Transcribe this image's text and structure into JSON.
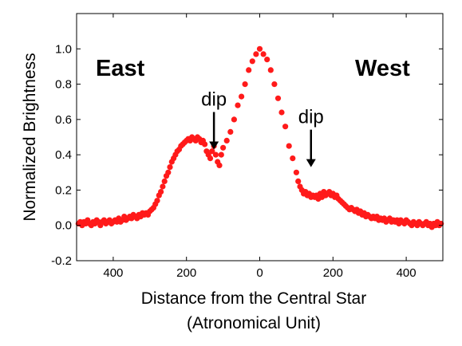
{
  "chart_data": {
    "type": "scatter",
    "title": "",
    "ylabel": "Normalized Brightness",
    "xlabel_line1": "Distance from the Central Star",
    "xlabel_line2": "(Atronomical Unit)",
    "xlim": [
      -500,
      500
    ],
    "ylim": [
      -0.2,
      1.2
    ],
    "xticks": [
      {
        "value": -400,
        "label": "400"
      },
      {
        "value": -200,
        "label": "200"
      },
      {
        "value": 0,
        "label": "0"
      },
      {
        "value": 200,
        "label": "200"
      },
      {
        "value": 400,
        "label": "400"
      }
    ],
    "yticks": [
      {
        "value": -0.2,
        "label": "-0.2"
      },
      {
        "value": 0.0,
        "label": "0.0"
      },
      {
        "value": 0.2,
        "label": "0.2"
      },
      {
        "value": 0.4,
        "label": "0.4"
      },
      {
        "value": 0.6,
        "label": "0.6"
      },
      {
        "value": 0.8,
        "label": "0.8"
      },
      {
        "value": 1.0,
        "label": "1.0"
      }
    ],
    "grid": false,
    "marker_color": "#ff1a1a",
    "side_labels": {
      "east": "East",
      "west": "West"
    },
    "annotations": [
      {
        "text": "dip",
        "x": -125,
        "y": 0.43
      },
      {
        "text": "dip",
        "x": 140,
        "y": 0.33
      }
    ],
    "points": [
      [
        -495,
        0.01
      ],
      [
        -490,
        0.02
      ],
      [
        -485,
        0.0
      ],
      [
        -480,
        0.02
      ],
      [
        -475,
        0.01
      ],
      [
        -470,
        0.03
      ],
      [
        -465,
        0.01
      ],
      [
        -460,
        0.0
      ],
      [
        -455,
        0.02
      ],
      [
        -450,
        0.01
      ],
      [
        -445,
        0.03
      ],
      [
        -440,
        0.02
      ],
      [
        -435,
        0.0
      ],
      [
        -430,
        0.02
      ],
      [
        -425,
        0.03
      ],
      [
        -420,
        0.01
      ],
      [
        -415,
        0.02
      ],
      [
        -410,
        0.03
      ],
      [
        -405,
        0.01
      ],
      [
        -400,
        0.02
      ],
      [
        -395,
        0.03
      ],
      [
        -390,
        0.02
      ],
      [
        -385,
        0.04
      ],
      [
        -380,
        0.02
      ],
      [
        -375,
        0.03
      ],
      [
        -370,
        0.05
      ],
      [
        -365,
        0.03
      ],
      [
        -360,
        0.04
      ],
      [
        -355,
        0.05
      ],
      [
        -350,
        0.04
      ],
      [
        -345,
        0.06
      ],
      [
        -340,
        0.05
      ],
      [
        -335,
        0.04
      ],
      [
        -330,
        0.06
      ],
      [
        -325,
        0.05
      ],
      [
        -320,
        0.07
      ],
      [
        -315,
        0.06
      ],
      [
        -310,
        0.07
      ],
      [
        -305,
        0.06
      ],
      [
        -300,
        0.08
      ],
      [
        -295,
        0.09
      ],
      [
        -290,
        0.1
      ],
      [
        -285,
        0.12
      ],
      [
        -280,
        0.14
      ],
      [
        -275,
        0.17
      ],
      [
        -270,
        0.19
      ],
      [
        -265,
        0.22
      ],
      [
        -260,
        0.25
      ],
      [
        -255,
        0.28
      ],
      [
        -250,
        0.3
      ],
      [
        -245,
        0.33
      ],
      [
        -240,
        0.36
      ],
      [
        -235,
        0.38
      ],
      [
        -230,
        0.4
      ],
      [
        -225,
        0.42
      ],
      [
        -220,
        0.43
      ],
      [
        -215,
        0.45
      ],
      [
        -210,
        0.46
      ],
      [
        -205,
        0.47
      ],
      [
        -200,
        0.48
      ],
      [
        -195,
        0.49
      ],
      [
        -190,
        0.48
      ],
      [
        -185,
        0.5
      ],
      [
        -180,
        0.49
      ],
      [
        -175,
        0.48
      ],
      [
        -170,
        0.5
      ],
      [
        -165,
        0.49
      ],
      [
        -160,
        0.47
      ],
      [
        -155,
        0.48
      ],
      [
        -150,
        0.46
      ],
      [
        -145,
        0.42
      ],
      [
        -140,
        0.4
      ],
      [
        -135,
        0.38
      ],
      [
        -130,
        0.42
      ],
      [
        -125,
        0.45
      ],
      [
        -120,
        0.4
      ],
      [
        -115,
        0.36
      ],
      [
        -110,
        0.34
      ],
      [
        -105,
        0.4
      ],
      [
        -100,
        0.44
      ],
      [
        -90,
        0.48
      ],
      [
        -80,
        0.53
      ],
      [
        -70,
        0.6
      ],
      [
        -60,
        0.68
      ],
      [
        -50,
        0.73
      ],
      [
        -40,
        0.8
      ],
      [
        -30,
        0.88
      ],
      [
        -20,
        0.93
      ],
      [
        -10,
        0.97
      ],
      [
        0,
        1.0
      ],
      [
        10,
        0.97
      ],
      [
        20,
        0.94
      ],
      [
        30,
        0.88
      ],
      [
        40,
        0.8
      ],
      [
        50,
        0.72
      ],
      [
        60,
        0.64
      ],
      [
        70,
        0.56
      ],
      [
        80,
        0.45
      ],
      [
        90,
        0.38
      ],
      [
        100,
        0.3
      ],
      [
        105,
        0.25
      ],
      [
        110,
        0.22
      ],
      [
        115,
        0.2
      ],
      [
        120,
        0.18
      ],
      [
        125,
        0.19
      ],
      [
        130,
        0.17
      ],
      [
        135,
        0.18
      ],
      [
        140,
        0.16
      ],
      [
        145,
        0.17
      ],
      [
        150,
        0.16
      ],
      [
        155,
        0.17
      ],
      [
        160,
        0.15
      ],
      [
        165,
        0.18
      ],
      [
        170,
        0.16
      ],
      [
        175,
        0.19
      ],
      [
        180,
        0.17
      ],
      [
        185,
        0.18
      ],
      [
        190,
        0.19
      ],
      [
        195,
        0.17
      ],
      [
        200,
        0.18
      ],
      [
        205,
        0.16
      ],
      [
        210,
        0.17
      ],
      [
        215,
        0.15
      ],
      [
        220,
        0.14
      ],
      [
        225,
        0.13
      ],
      [
        230,
        0.12
      ],
      [
        235,
        0.11
      ],
      [
        240,
        0.1
      ],
      [
        245,
        0.09
      ],
      [
        250,
        0.1
      ],
      [
        255,
        0.09
      ],
      [
        260,
        0.08
      ],
      [
        265,
        0.09
      ],
      [
        270,
        0.07
      ],
      [
        275,
        0.08
      ],
      [
        280,
        0.06
      ],
      [
        285,
        0.07
      ],
      [
        290,
        0.05
      ],
      [
        295,
        0.06
      ],
      [
        300,
        0.05
      ],
      [
        305,
        0.04
      ],
      [
        310,
        0.05
      ],
      [
        315,
        0.04
      ],
      [
        320,
        0.05
      ],
      [
        325,
        0.03
      ],
      [
        330,
        0.04
      ],
      [
        335,
        0.03
      ],
      [
        340,
        0.04
      ],
      [
        345,
        0.02
      ],
      [
        350,
        0.03
      ],
      [
        355,
        0.04
      ],
      [
        360,
        0.02
      ],
      [
        365,
        0.03
      ],
      [
        370,
        0.02
      ],
      [
        375,
        0.03
      ],
      [
        380,
        0.01
      ],
      [
        385,
        0.03
      ],
      [
        390,
        0.02
      ],
      [
        395,
        0.01
      ],
      [
        400,
        0.03
      ],
      [
        405,
        0.02
      ],
      [
        410,
        0.01
      ],
      [
        415,
        0.0
      ],
      [
        420,
        0.02
      ],
      [
        425,
        0.01
      ],
      [
        430,
        0.0
      ],
      [
        435,
        0.02
      ],
      [
        440,
        0.01
      ],
      [
        445,
        0.0
      ],
      [
        450,
        0.01
      ],
      [
        455,
        0.02
      ],
      [
        460,
        0.0
      ],
      [
        465,
        0.01
      ],
      [
        470,
        -0.01
      ],
      [
        475,
        0.01
      ],
      [
        480,
        0.0
      ],
      [
        485,
        0.02
      ],
      [
        490,
        0.0
      ],
      [
        495,
        0.01
      ]
    ]
  }
}
